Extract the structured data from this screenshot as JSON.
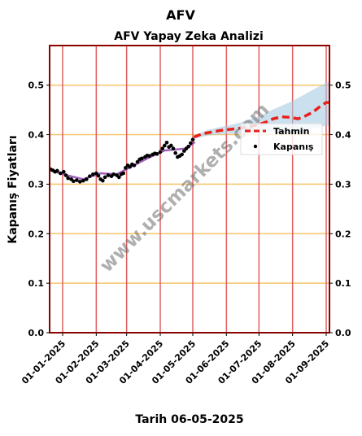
{
  "page_title": "AFV",
  "xlabel_text": "Tarih 06-05-2025",
  "watermark": "www.uscmarkets.com",
  "chart_data": {
    "type": "line",
    "title": "AFV Yapay Zeka Analizi",
    "xlabel": "Tarih 06-05-2025",
    "ylabel": "Kapanış Fiyatları",
    "xlim": [
      "2024-12-20",
      "2025-09-04"
    ],
    "ylim": [
      0,
      0.58
    ],
    "y_ticks": [
      0.0,
      0.1,
      0.2,
      0.3,
      0.4,
      0.5
    ],
    "y_tick_labels": [
      "0.0",
      "0.1",
      "0.2",
      "0.3",
      "0.4",
      "0.5"
    ],
    "x_ticks": [
      "2025-01-01",
      "2025-02-01",
      "2025-03-01",
      "2025-04-01",
      "2025-05-01",
      "2025-06-01",
      "2025-07-01",
      "2025-08-01",
      "2025-09-01"
    ],
    "x_tick_labels": [
      "01-01-2025",
      "01-02-2025",
      "01-03-2025",
      "01-04-2025",
      "01-05-2025",
      "01-06-2025",
      "01-07-2025",
      "01-08-2025",
      "01-09-2025"
    ],
    "legend": {
      "position": "right",
      "entries": [
        "Tahmin",
        "Kapanış"
      ]
    },
    "colors": {
      "frame": "#8b0000",
      "vertical_grid": "#e06060",
      "horizontal_grid": "#f6c46a",
      "forecast": "#e8211b",
      "close": "#000000",
      "smooth": "#8e44ad",
      "band": "#a9cbe3"
    },
    "series": [
      {
        "name": "Kapanış",
        "style": "points",
        "points": [
          [
            "2024-12-21",
            0.33
          ],
          [
            "2024-12-23",
            0.328
          ],
          [
            "2024-12-25",
            0.325
          ],
          [
            "2024-12-27",
            0.327
          ],
          [
            "2024-12-30",
            0.322
          ],
          [
            "2025-01-02",
            0.325
          ],
          [
            "2025-01-04",
            0.318
          ],
          [
            "2025-01-06",
            0.312
          ],
          [
            "2025-01-09",
            0.31
          ],
          [
            "2025-01-11",
            0.306
          ],
          [
            "2025-01-14",
            0.308
          ],
          [
            "2025-01-17",
            0.305
          ],
          [
            "2025-01-20",
            0.307
          ],
          [
            "2025-01-23",
            0.31
          ],
          [
            "2025-01-26",
            0.316
          ],
          [
            "2025-01-29",
            0.32
          ],
          [
            "2025-02-01",
            0.322
          ],
          [
            "2025-02-03",
            0.317
          ],
          [
            "2025-02-05",
            0.31
          ],
          [
            "2025-02-07",
            0.307
          ],
          [
            "2025-02-09",
            0.314
          ],
          [
            "2025-02-12",
            0.318
          ],
          [
            "2025-02-15",
            0.316
          ],
          [
            "2025-02-17",
            0.32
          ],
          [
            "2025-02-20",
            0.318
          ],
          [
            "2025-02-22",
            0.314
          ],
          [
            "2025-02-24",
            0.32
          ],
          [
            "2025-02-26",
            0.322
          ],
          [
            "2025-02-28",
            0.333
          ],
          [
            "2025-03-02",
            0.338
          ],
          [
            "2025-03-04",
            0.335
          ],
          [
            "2025-03-06",
            0.34
          ],
          [
            "2025-03-08",
            0.338
          ],
          [
            "2025-03-11",
            0.345
          ],
          [
            "2025-03-13",
            0.35
          ],
          [
            "2025-03-15",
            0.352
          ],
          [
            "2025-03-18",
            0.355
          ],
          [
            "2025-03-20",
            0.358
          ],
          [
            "2025-03-22",
            0.357
          ],
          [
            "2025-03-25",
            0.36
          ],
          [
            "2025-03-27",
            0.362
          ],
          [
            "2025-03-29",
            0.361
          ],
          [
            "2025-04-01",
            0.365
          ],
          [
            "2025-04-03",
            0.372
          ],
          [
            "2025-04-05",
            0.378
          ],
          [
            "2025-04-07",
            0.384
          ],
          [
            "2025-04-09",
            0.375
          ],
          [
            "2025-04-11",
            0.378
          ],
          [
            "2025-04-13",
            0.372
          ],
          [
            "2025-04-15",
            0.363
          ],
          [
            "2025-04-17",
            0.355
          ],
          [
            "2025-04-19",
            0.357
          ],
          [
            "2025-04-21",
            0.36
          ],
          [
            "2025-04-23",
            0.367
          ],
          [
            "2025-04-25",
            0.372
          ],
          [
            "2025-04-27",
            0.376
          ],
          [
            "2025-04-29",
            0.383
          ],
          [
            "2025-05-01",
            0.39
          ]
        ]
      },
      {
        "name": "smoothed",
        "style": "line",
        "points": [
          [
            "2024-12-21",
            0.328
          ],
          [
            "2025-01-05",
            0.318
          ],
          [
            "2025-01-20",
            0.31
          ],
          [
            "2025-02-05",
            0.322
          ],
          [
            "2025-02-20",
            0.32
          ],
          [
            "2025-03-05",
            0.335
          ],
          [
            "2025-03-20",
            0.352
          ],
          [
            "2025-04-05",
            0.368
          ],
          [
            "2025-04-15",
            0.37
          ],
          [
            "2025-04-25",
            0.372
          ],
          [
            "2025-05-03",
            0.385
          ]
        ]
      },
      {
        "name": "Tahmin",
        "style": "dashed",
        "points": [
          [
            "2025-05-02",
            0.395
          ],
          [
            "2025-05-10",
            0.402
          ],
          [
            "2025-05-18",
            0.405
          ],
          [
            "2025-05-25",
            0.408
          ],
          [
            "2025-06-01",
            0.41
          ],
          [
            "2025-06-10",
            0.412
          ],
          [
            "2025-06-20",
            0.415
          ],
          [
            "2025-06-30",
            0.42
          ],
          [
            "2025-07-07",
            0.425
          ],
          [
            "2025-07-14",
            0.432
          ],
          [
            "2025-07-22",
            0.436
          ],
          [
            "2025-07-30",
            0.435
          ],
          [
            "2025-08-06",
            0.432
          ],
          [
            "2025-08-13",
            0.438
          ],
          [
            "2025-08-20",
            0.446
          ],
          [
            "2025-08-27",
            0.458
          ],
          [
            "2025-09-01",
            0.465
          ],
          [
            "2025-09-04",
            0.465
          ]
        ]
      },
      {
        "name": "band",
        "style": "area",
        "points": [
          [
            "2025-05-02",
            0.392,
            0.398
          ],
          [
            "2025-05-15",
            0.398,
            0.41
          ],
          [
            "2025-06-01",
            0.402,
            0.418
          ],
          [
            "2025-06-15",
            0.402,
            0.425
          ],
          [
            "2025-07-01",
            0.403,
            0.437
          ],
          [
            "2025-07-15",
            0.405,
            0.452
          ],
          [
            "2025-08-01",
            0.403,
            0.468
          ],
          [
            "2025-08-15",
            0.41,
            0.485
          ],
          [
            "2025-09-01",
            0.418,
            0.505
          ],
          [
            "2025-09-04",
            0.418,
            0.508
          ]
        ]
      }
    ]
  }
}
